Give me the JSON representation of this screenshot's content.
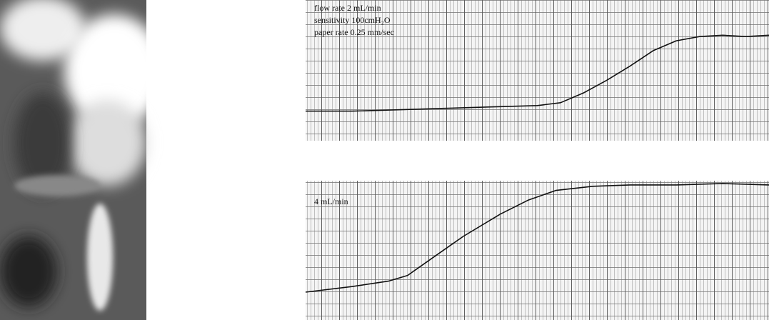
{
  "chart_data": [
    {
      "type": "line",
      "annotations": [
        "flow rate 2 mL/min",
        "sensitivity 100cmH₂O",
        "paper rate 0.25 mm/sec"
      ],
      "xlim": [
        0,
        100
      ],
      "ylim": [
        0,
        10
      ],
      "color": "#111111",
      "x": [
        0,
        10,
        20,
        30,
        40,
        50,
        55,
        60,
        65,
        70,
        75,
        80,
        85,
        90,
        95,
        100
      ],
      "values": [
        2.1,
        2.1,
        2.2,
        2.3,
        2.4,
        2.5,
        2.7,
        3.4,
        4.3,
        5.3,
        6.4,
        7.1,
        7.4,
        7.5,
        7.4,
        7.5
      ]
    },
    {
      "type": "line",
      "annotations": [
        "4 mL/min"
      ],
      "xlim": [
        0,
        100
      ],
      "ylim": [
        0,
        10
      ],
      "color": "#111111",
      "x": [
        0,
        10,
        18,
        22,
        28,
        34,
        42,
        48,
        54,
        62,
        70,
        80,
        90,
        100
      ],
      "values": [
        2.0,
        2.4,
        2.8,
        3.2,
        4.6,
        6.0,
        7.6,
        8.6,
        9.3,
        9.6,
        9.7,
        9.7,
        9.8,
        9.7
      ]
    }
  ]
}
